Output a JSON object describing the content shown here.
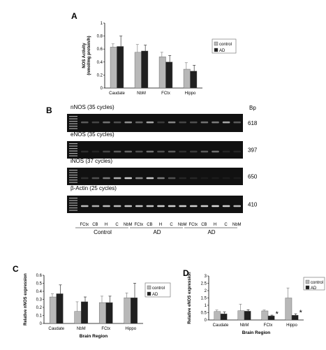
{
  "colors": {
    "control": "#b8b8b8",
    "ad": "#202020",
    "gel": "#111111",
    "band": "#e6e6e6"
  },
  "panel_a": {
    "letter": "A",
    "chart_data": {
      "type": "bar",
      "categories": [
        "Caudate",
        "NbM",
        "FCtx",
        "Hippo"
      ],
      "series": [
        {
          "name": "control",
          "values": [
            0.63,
            0.55,
            0.48,
            0.29
          ],
          "errors": [
            0.05,
            0.12,
            0.07,
            0.1
          ]
        },
        {
          "name": "AD",
          "values": [
            0.64,
            0.57,
            0.4,
            0.26
          ],
          "errors": [
            0.16,
            0.09,
            0.1,
            0.09
          ]
        }
      ],
      "xlabel": "Brain Region",
      "ylabel": "NOS Activity (nmol/mg protein/h)",
      "ylim": [
        0,
        1
      ],
      "yticks": [
        "0",
        "0.2",
        "0.4",
        "0.6",
        "0.8",
        "1"
      ],
      "legend_placement": "right",
      "grid": false
    }
  },
  "panel_b": {
    "letter": "B",
    "bp_header": "Bp",
    "gels": [
      {
        "label": "nNOS (35 cycles)",
        "bp": "618"
      },
      {
        "label": "eNOS (35 cycles)",
        "bp": "397"
      },
      {
        "label": "iNOS (37 cycles)",
        "bp": "650"
      },
      {
        "label": "β-Actin (25 cycles)",
        "bp": "410"
      }
    ],
    "lanes": [
      "FCtx",
      "CB",
      "H",
      "C",
      "NbM",
      "FCtx",
      "CB",
      "H",
      "C",
      "NbM",
      "FCtx",
      "CB",
      "H",
      "C",
      "NbM"
    ],
    "groups": [
      "Control",
      "AD",
      "AD"
    ]
  },
  "panel_c": {
    "letter": "C",
    "chart_data": {
      "type": "bar",
      "categories": [
        "Caudate",
        "NbM",
        "FCtx",
        "Hippo"
      ],
      "series": [
        {
          "name": "control",
          "values": [
            0.33,
            0.15,
            0.26,
            0.32
          ],
          "errors": [
            0.04,
            0.12,
            0.08,
            0.06
          ]
        },
        {
          "name": "AD",
          "values": [
            0.37,
            0.27,
            0.26,
            0.32
          ],
          "errors": [
            0.11,
            0.06,
            0.08,
            0.18
          ]
        }
      ],
      "xlabel": "Brain Region",
      "ylabel": "Relative nNOS expression",
      "ylim": [
        0,
        0.6
      ],
      "yticks": [
        "0",
        "0.1",
        "0.2",
        "0.3",
        "0.4",
        "0.5",
        "0.6"
      ],
      "legend_placement": "top-right",
      "grid": false
    }
  },
  "panel_d": {
    "letter": "D",
    "chart_data": {
      "type": "bar",
      "categories": [
        "Caudate",
        "NbM",
        "FCtx",
        "Hippo"
      ],
      "series": [
        {
          "name": "control",
          "values": [
            0.58,
            0.63,
            0.62,
            1.5
          ],
          "errors": [
            0.1,
            0.45,
            0.06,
            0.68
          ]
        },
        {
          "name": "AD",
          "values": [
            0.42,
            0.6,
            0.28,
            0.32
          ],
          "errors": [
            0.13,
            0.1,
            0.05,
            0.1
          ]
        }
      ],
      "xlabel": "Brain Region",
      "ylabel": "Relative eNOS expression",
      "ylim": [
        0,
        3
      ],
      "yticks": [
        "0",
        "0.5",
        "1",
        "1.5",
        "2",
        "2.5",
        "3"
      ],
      "significance": [
        {
          "category": "FCtx",
          "series": "AD",
          "mark": "*"
        },
        {
          "category": "Hippo",
          "series": "AD",
          "mark": "*"
        }
      ],
      "legend_placement": "top-right",
      "grid": false
    }
  }
}
